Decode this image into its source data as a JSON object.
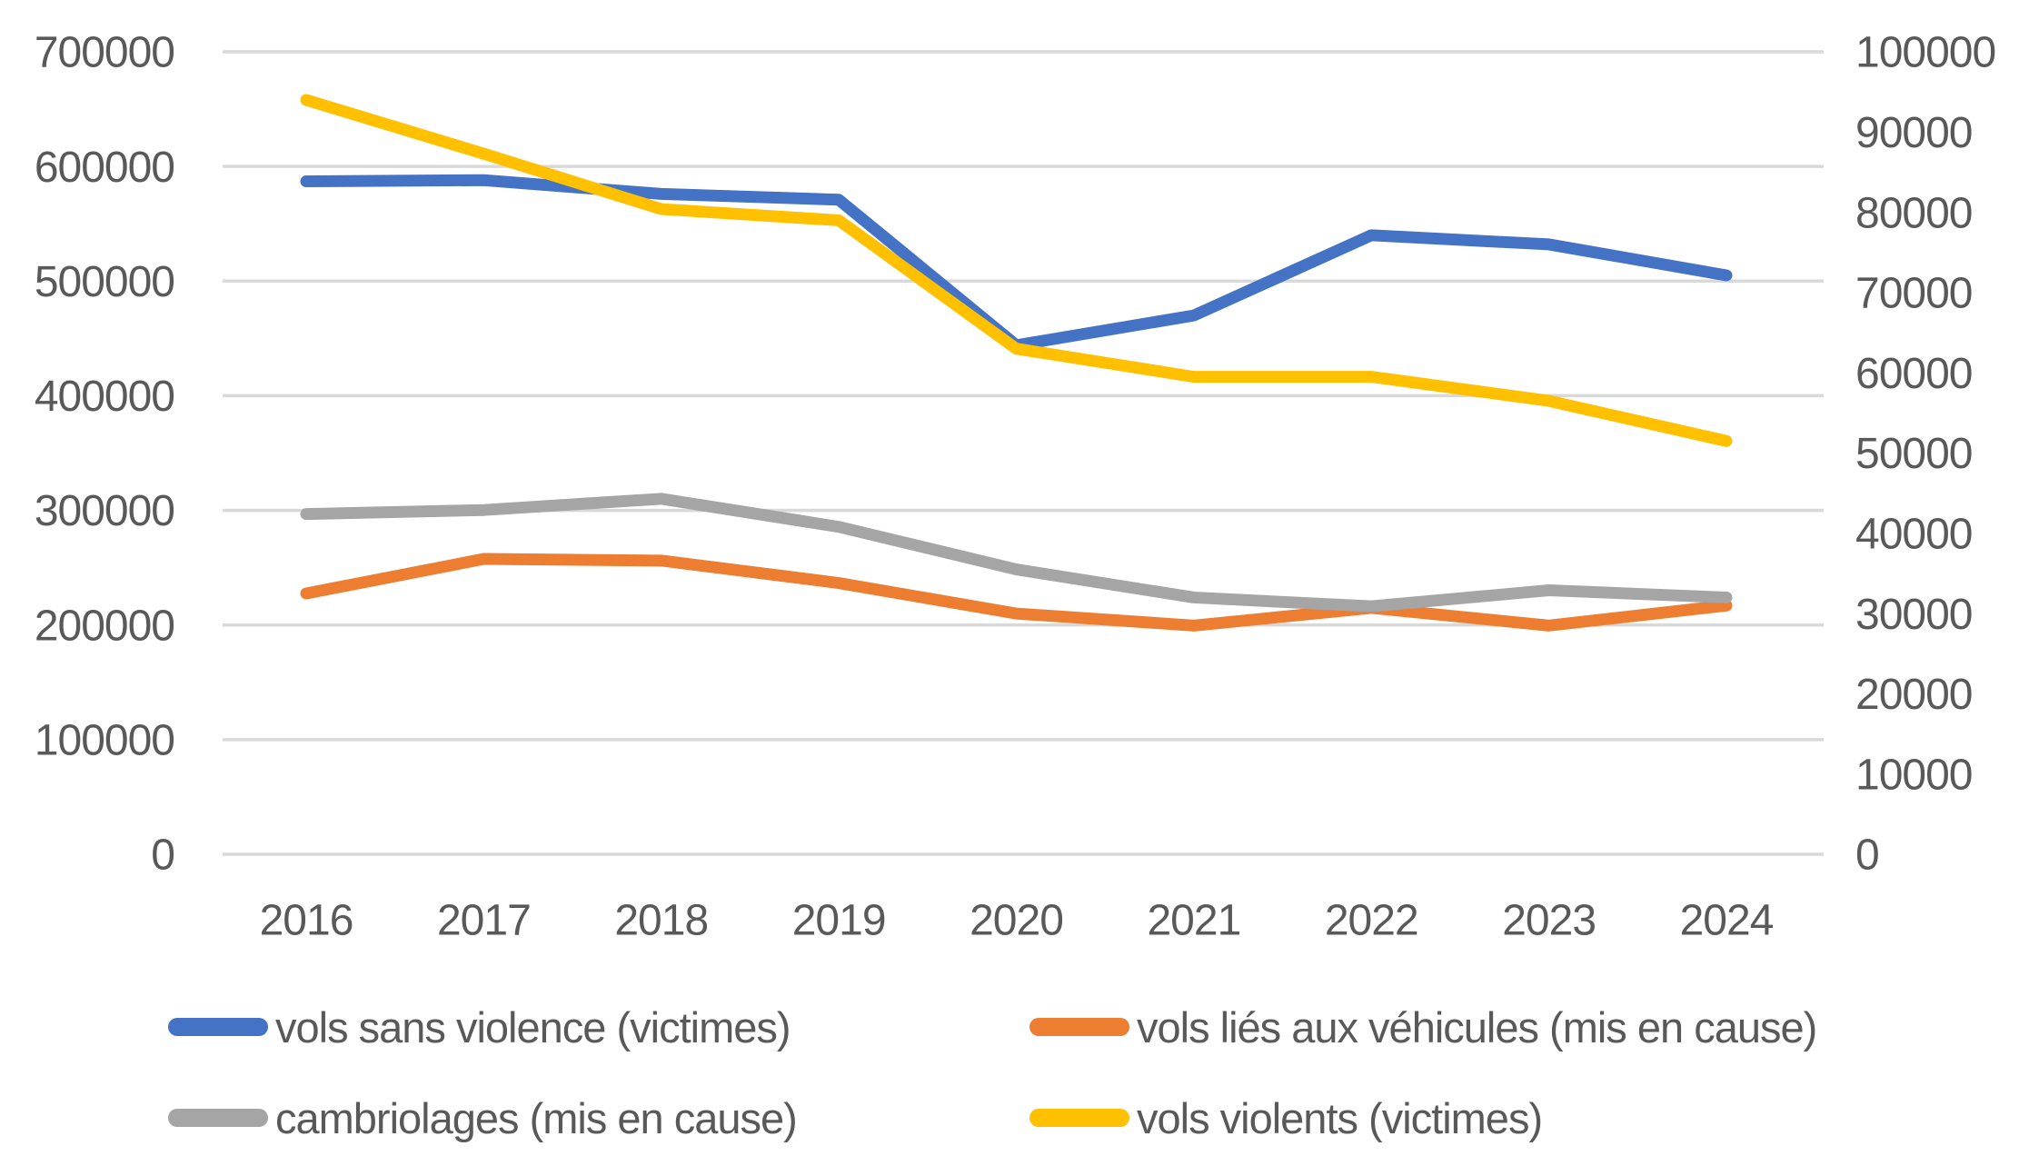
{
  "chart_data": {
    "type": "line",
    "title": "",
    "x_labels": [
      "2016",
      "2017",
      "2018",
      "2019",
      "2020",
      "2021",
      "2022",
      "2023",
      "2024"
    ],
    "series": [
      {
        "name": "vols sans violence (victimes)",
        "axis": "left",
        "color": "#4472C4",
        "values": [
          587000,
          588000,
          576000,
          571000,
          444000,
          470000,
          540000,
          532000,
          505000
        ]
      },
      {
        "name": "vols liés aux véhicules (mis en cause)",
        "axis": "right",
        "color": "#ED7D31",
        "values": [
          32500,
          36800,
          36600,
          33800,
          30000,
          28500,
          30700,
          28500,
          31000
        ]
      },
      {
        "name": "cambriolages (mis en cause)",
        "axis": "right",
        "color": "#A5A5A5",
        "values": [
          42400,
          42900,
          44300,
          40800,
          35500,
          32000,
          30900,
          32900,
          32000
        ]
      },
      {
        "name": "vols violents (victimes)",
        "axis": "right",
        "color": "#FFC000",
        "values": [
          94000,
          87300,
          80400,
          79000,
          63000,
          59500,
          59500,
          56500,
          51500
        ]
      }
    ],
    "left_axis": {
      "min": 0,
      "max": 700000,
      "step": 100000,
      "tick_labels": [
        "700000",
        "600000",
        "500000",
        "400000",
        "300000",
        "200000",
        "100000",
        "0"
      ]
    },
    "right_axis": {
      "min": 0,
      "max": 100000,
      "step": 10000,
      "tick_labels": [
        "100000",
        "90000",
        "80000",
        "70000",
        "60000",
        "50000",
        "40000",
        "30000",
        "20000",
        "10000",
        "0"
      ]
    },
    "grid": true,
    "legend_position": "bottom"
  },
  "colors": {
    "gridline": "#D9D9D9",
    "axis_text": "#595959",
    "background": "#FFFFFF"
  }
}
